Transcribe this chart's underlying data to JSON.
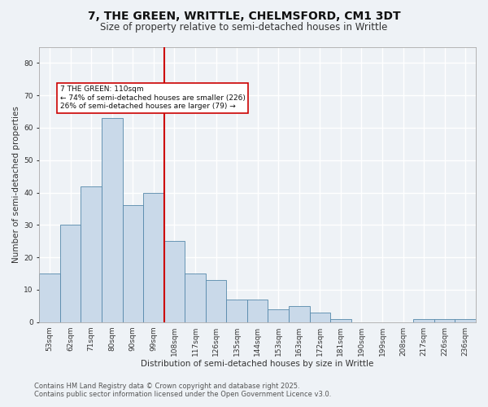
{
  "title": "7, THE GREEN, WRITTLE, CHELMSFORD, CM1 3DT",
  "subtitle": "Size of property relative to semi-detached houses in Writtle",
  "xlabel": "Distribution of semi-detached houses by size in Writtle",
  "ylabel": "Number of semi-detached properties",
  "bin_labels": [
    "53sqm",
    "62sqm",
    "71sqm",
    "80sqm",
    "90sqm",
    "99sqm",
    "108sqm",
    "117sqm",
    "126sqm",
    "135sqm",
    "144sqm",
    "153sqm",
    "163sqm",
    "172sqm",
    "181sqm",
    "190sqm",
    "199sqm",
    "208sqm",
    "217sqm",
    "226sqm",
    "236sqm"
  ],
  "bar_heights": [
    15,
    30,
    42,
    63,
    36,
    40,
    25,
    15,
    13,
    7,
    7,
    4,
    5,
    3,
    1,
    0,
    0,
    0,
    1,
    1,
    1
  ],
  "bar_color": "#c9d9e9",
  "bar_edge_color": "#5588aa",
  "vline_x_index": 6,
  "vline_color": "#cc0000",
  "ylim": [
    0,
    85
  ],
  "yticks": [
    0,
    10,
    20,
    30,
    40,
    50,
    60,
    70,
    80
  ],
  "annotation_title": "7 THE GREEN: 110sqm",
  "annotation_line1": "← 74% of semi-detached houses are smaller (226)",
  "annotation_line2": "26% of semi-detached houses are larger (79) →",
  "annotation_box_color": "#ffffff",
  "annotation_box_edge": "#cc0000",
  "footer_line1": "Contains HM Land Registry data © Crown copyright and database right 2025.",
  "footer_line2": "Contains public sector information licensed under the Open Government Licence v3.0.",
  "bg_color": "#eef2f6",
  "plot_bg_color": "#eef2f6",
  "grid_color": "#ffffff",
  "title_fontsize": 10,
  "subtitle_fontsize": 8.5,
  "axis_label_fontsize": 7.5,
  "tick_fontsize": 6.5,
  "annotation_fontsize": 6.5,
  "footer_fontsize": 6.0
}
